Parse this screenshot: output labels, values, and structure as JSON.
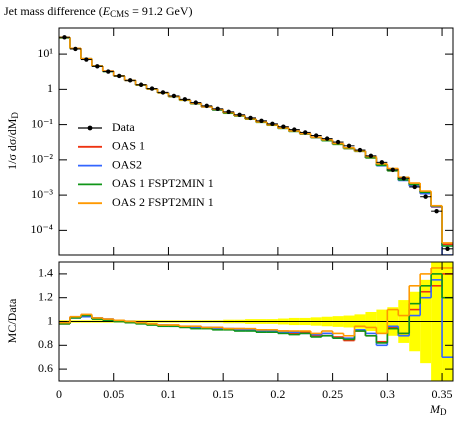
{
  "chart_data": [
    {
      "type": "histogram",
      "title_parts": [
        "Jet mass difference (",
        "E",
        "CMS",
        " = 91.2 GeV)"
      ],
      "ylabel": "1/σ dσ/dM",
      "ylabel_sub": "D",
      "logy": true,
      "bins": [
        0,
        0.01,
        0.02,
        0.03,
        0.04,
        0.05,
        0.06,
        0.07,
        0.08,
        0.09,
        0.1,
        0.11,
        0.12,
        0.13,
        0.14,
        0.15,
        0.16,
        0.17,
        0.18,
        0.19,
        0.2,
        0.21,
        0.22,
        0.23,
        0.24,
        0.25,
        0.26,
        0.27,
        0.28,
        0.29,
        0.3,
        0.31,
        0.32,
        0.33,
        0.34,
        0.35,
        0.36
      ],
      "xlim": [
        0,
        0.36
      ],
      "xticks": [
        0,
        0.05,
        0.1,
        0.15,
        0.2,
        0.25,
        0.3,
        0.35
      ],
      "ylim": [
        2e-05,
        55
      ],
      "yticks": [
        {
          "value": 0.0001,
          "label": "10⁻⁴"
        },
        {
          "value": 0.001,
          "label": "10⁻³"
        },
        {
          "value": 0.01,
          "label": "10⁻²"
        },
        {
          "value": 0.1,
          "label": "10⁻¹"
        },
        1,
        {
          "value": 10,
          "label": "10¹"
        }
      ],
      "legend": "left",
      "data": {
        "name": "Data",
        "color": "#000000",
        "values": [
          30,
          14,
          7,
          4.5,
          3.2,
          2.4,
          1.8,
          1.35,
          1.05,
          0.82,
          0.65,
          0.52,
          0.42,
          0.34,
          0.28,
          0.23,
          0.19,
          0.155,
          0.128,
          0.105,
          0.087,
          0.072,
          0.06,
          0.049,
          0.04,
          0.032,
          0.025,
          0.019,
          0.013,
          0.0085,
          0.0052,
          0.003,
          0.0017,
          0.0009,
          0.00035,
          3e-05
        ]
      },
      "series": [
        {
          "name": "OAS 1",
          "color": "#ee3311",
          "values": [
            29,
            14.6,
            7.4,
            4.6,
            3.3,
            2.4,
            1.8,
            1.34,
            1.03,
            0.8,
            0.63,
            0.5,
            0.4,
            0.32,
            0.27,
            0.22,
            0.18,
            0.144,
            0.119,
            0.097,
            0.08,
            0.065,
            0.055,
            0.043,
            0.036,
            0.028,
            0.021,
            0.0175,
            0.0114,
            0.0071,
            0.0049,
            0.0027,
            0.0019,
            0.0011,
            0.00046,
            4e-05
          ]
        },
        {
          "name": "OAS2",
          "color": "#3366ff",
          "values": [
            30,
            14.4,
            7.3,
            4.6,
            3.3,
            2.4,
            1.8,
            1.34,
            1.03,
            0.8,
            0.62,
            0.5,
            0.4,
            0.32,
            0.26,
            0.22,
            0.18,
            0.144,
            0.118,
            0.097,
            0.079,
            0.066,
            0.054,
            0.044,
            0.036,
            0.028,
            0.0215,
            0.0177,
            0.0117,
            0.0068,
            0.005,
            0.0026,
            0.0018,
            0.0011,
            0.00047,
            2e-05
          ]
        },
        {
          "name": "OAS 1 FSPT2MIN 1",
          "color": "#109618",
          "values": [
            29,
            14.4,
            7.4,
            4.6,
            3.2,
            2.4,
            1.8,
            1.32,
            1.02,
            0.79,
            0.62,
            0.49,
            0.39,
            0.32,
            0.26,
            0.21,
            0.175,
            0.143,
            0.116,
            0.096,
            0.078,
            0.064,
            0.054,
            0.043,
            0.035,
            0.0275,
            0.021,
            0.0175,
            0.0114,
            0.007,
            0.0049,
            0.0027,
            0.002,
            0.0012,
            0.00049,
            3.6e-05
          ]
        },
        {
          "name": "OAS 2 FSPT2MIN 1",
          "color": "#ff9900",
          "values": [
            30,
            14.6,
            7.4,
            4.6,
            3.3,
            2.4,
            1.8,
            1.34,
            1.03,
            0.8,
            0.63,
            0.5,
            0.4,
            0.32,
            0.27,
            0.22,
            0.18,
            0.146,
            0.119,
            0.098,
            0.08,
            0.066,
            0.055,
            0.044,
            0.037,
            0.029,
            0.022,
            0.018,
            0.0124,
            0.0077,
            0.0057,
            0.0032,
            0.0022,
            0.0013,
            0.0005,
            4.4e-05
          ]
        }
      ]
    },
    {
      "type": "histogram",
      "ylabel": "MC/Data",
      "xlabel": "M",
      "xlabel_sub": "D",
      "bins": [
        0,
        0.01,
        0.02,
        0.03,
        0.04,
        0.05,
        0.06,
        0.07,
        0.08,
        0.09,
        0.1,
        0.11,
        0.12,
        0.13,
        0.14,
        0.15,
        0.16,
        0.17,
        0.18,
        0.19,
        0.2,
        0.21,
        0.22,
        0.23,
        0.24,
        0.25,
        0.26,
        0.27,
        0.28,
        0.29,
        0.3,
        0.31,
        0.32,
        0.33,
        0.34,
        0.35,
        0.36
      ],
      "xlim": [
        0,
        0.36
      ],
      "xticks": [
        0,
        0.05,
        0.1,
        0.15,
        0.2,
        0.25,
        0.3,
        0.35
      ],
      "ylim": [
        0.5,
        1.5
      ],
      "yticks": [
        0.6,
        0.8,
        1,
        1.2,
        1.4
      ],
      "reference": 1,
      "band": {
        "color": "#ffff00",
        "values": [
          0.01,
          0.01,
          0.01,
          0.01,
          0.01,
          0.01,
          0.01,
          0.01,
          0.01,
          0.01,
          0.01,
          0.01,
          0.01,
          0.01,
          0.01,
          0.015,
          0.015,
          0.02,
          0.02,
          0.02,
          0.025,
          0.03,
          0.03,
          0.035,
          0.04,
          0.045,
          0.05,
          0.06,
          0.08,
          0.1,
          0.12,
          0.18,
          0.25,
          0.35,
          0.5,
          1.0
        ]
      },
      "series": [
        {
          "color": "#ee3311",
          "values": [
            0.98,
            1.04,
            1.05,
            1.03,
            1.02,
            1.01,
            1.0,
            0.99,
            0.98,
            0.97,
            0.97,
            0.96,
            0.96,
            0.95,
            0.95,
            0.94,
            0.94,
            0.93,
            0.93,
            0.92,
            0.92,
            0.9,
            0.91,
            0.88,
            0.9,
            0.87,
            0.84,
            0.92,
            0.88,
            0.83,
            0.95,
            0.9,
            1.1,
            1.25,
            1.3,
            1.4
          ]
        },
        {
          "color": "#3366ff",
          "values": [
            0.99,
            1.03,
            1.04,
            1.03,
            1.02,
            1.0,
            1.0,
            0.99,
            0.98,
            0.97,
            0.96,
            0.96,
            0.95,
            0.95,
            0.94,
            0.94,
            0.93,
            0.93,
            0.92,
            0.92,
            0.91,
            0.91,
            0.9,
            0.89,
            0.9,
            0.86,
            0.86,
            0.93,
            0.9,
            0.8,
            0.96,
            0.88,
            1.05,
            1.2,
            1.35,
            0.7
          ]
        },
        {
          "color": "#109618",
          "values": [
            0.98,
            1.03,
            1.05,
            1.02,
            1.01,
            1.0,
            0.99,
            0.98,
            0.97,
            0.96,
            0.96,
            0.95,
            0.94,
            0.94,
            0.93,
            0.93,
            0.92,
            0.92,
            0.91,
            0.91,
            0.9,
            0.89,
            0.9,
            0.87,
            0.88,
            0.86,
            0.85,
            0.92,
            0.88,
            0.82,
            0.94,
            0.9,
            1.15,
            1.3,
            1.4,
            1.2
          ]
        },
        {
          "color": "#ff9900",
          "values": [
            0.99,
            1.04,
            1.06,
            1.03,
            1.02,
            1.01,
            1.0,
            0.99,
            0.98,
            0.97,
            0.97,
            0.96,
            0.96,
            0.95,
            0.95,
            0.94,
            0.94,
            0.94,
            0.93,
            0.93,
            0.92,
            0.92,
            0.92,
            0.9,
            0.92,
            0.9,
            0.88,
            0.96,
            0.95,
            0.9,
            1.1,
            1.05,
            1.3,
            1.4,
            1.45,
            1.45
          ]
        }
      ]
    }
  ]
}
